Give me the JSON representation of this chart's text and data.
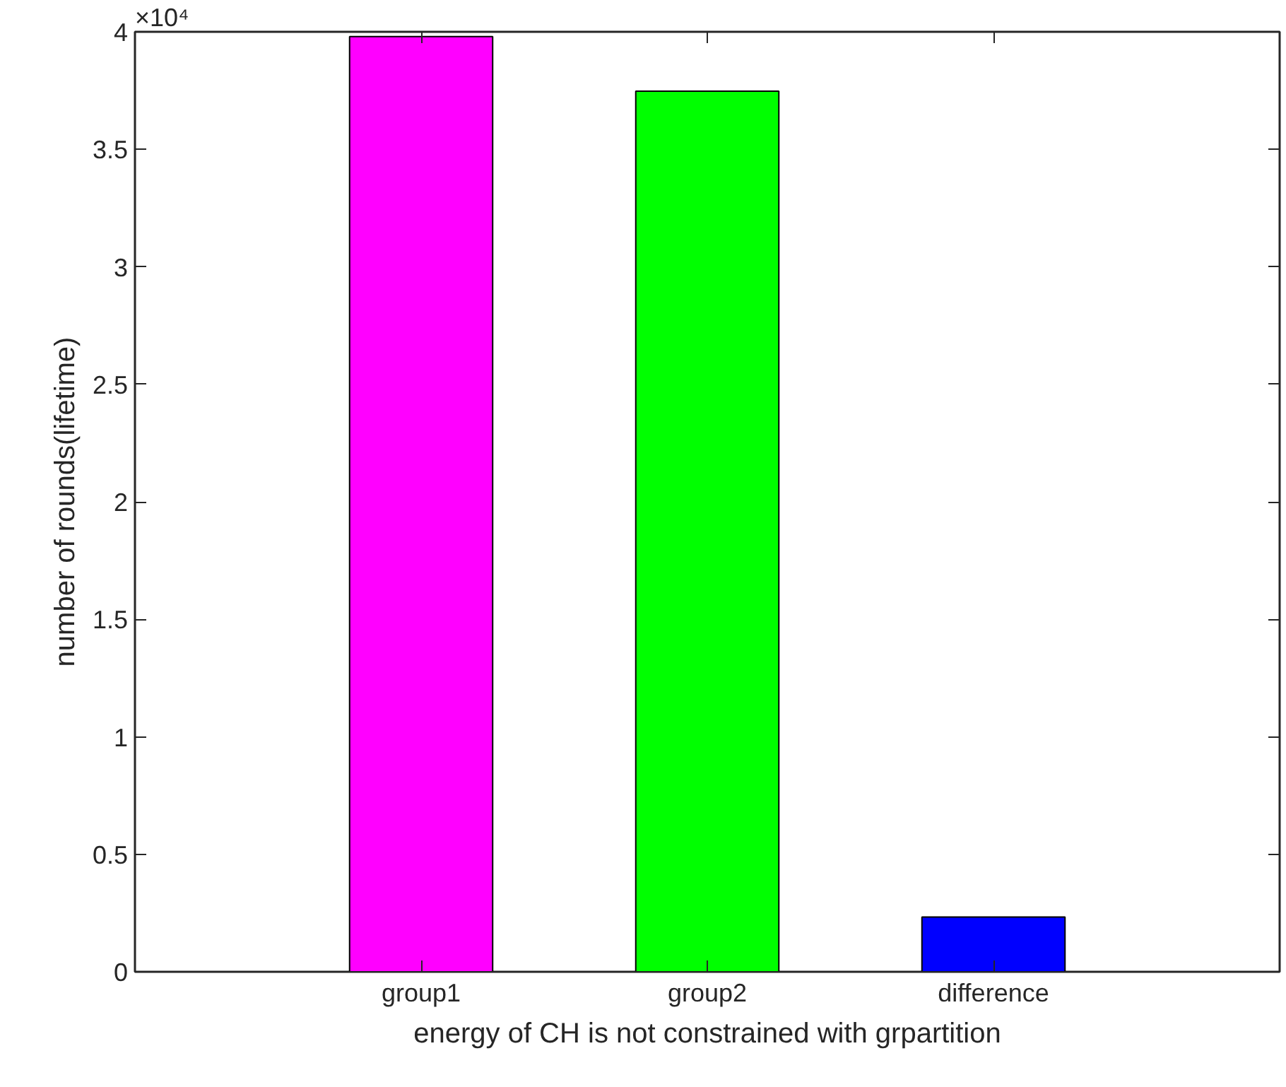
{
  "chart_data": {
    "type": "bar",
    "xlabel": "energy of CH is not constrained with grpartition",
    "ylabel": "number of rounds(lifetime)",
    "categories": [
      "group1",
      "group2",
      "difference"
    ],
    "values": [
      3.98,
      3.747,
      0.233
    ],
    "colors": [
      "#ff00ff",
      "#00ff00",
      "#0000ff"
    ],
    "ylim": [
      0,
      4
    ],
    "yticks": [
      0,
      0.5,
      1,
      1.5,
      2,
      2.5,
      3,
      3.5,
      4
    ],
    "annotations": [
      "×10⁴"
    ],
    "grid": false
  }
}
